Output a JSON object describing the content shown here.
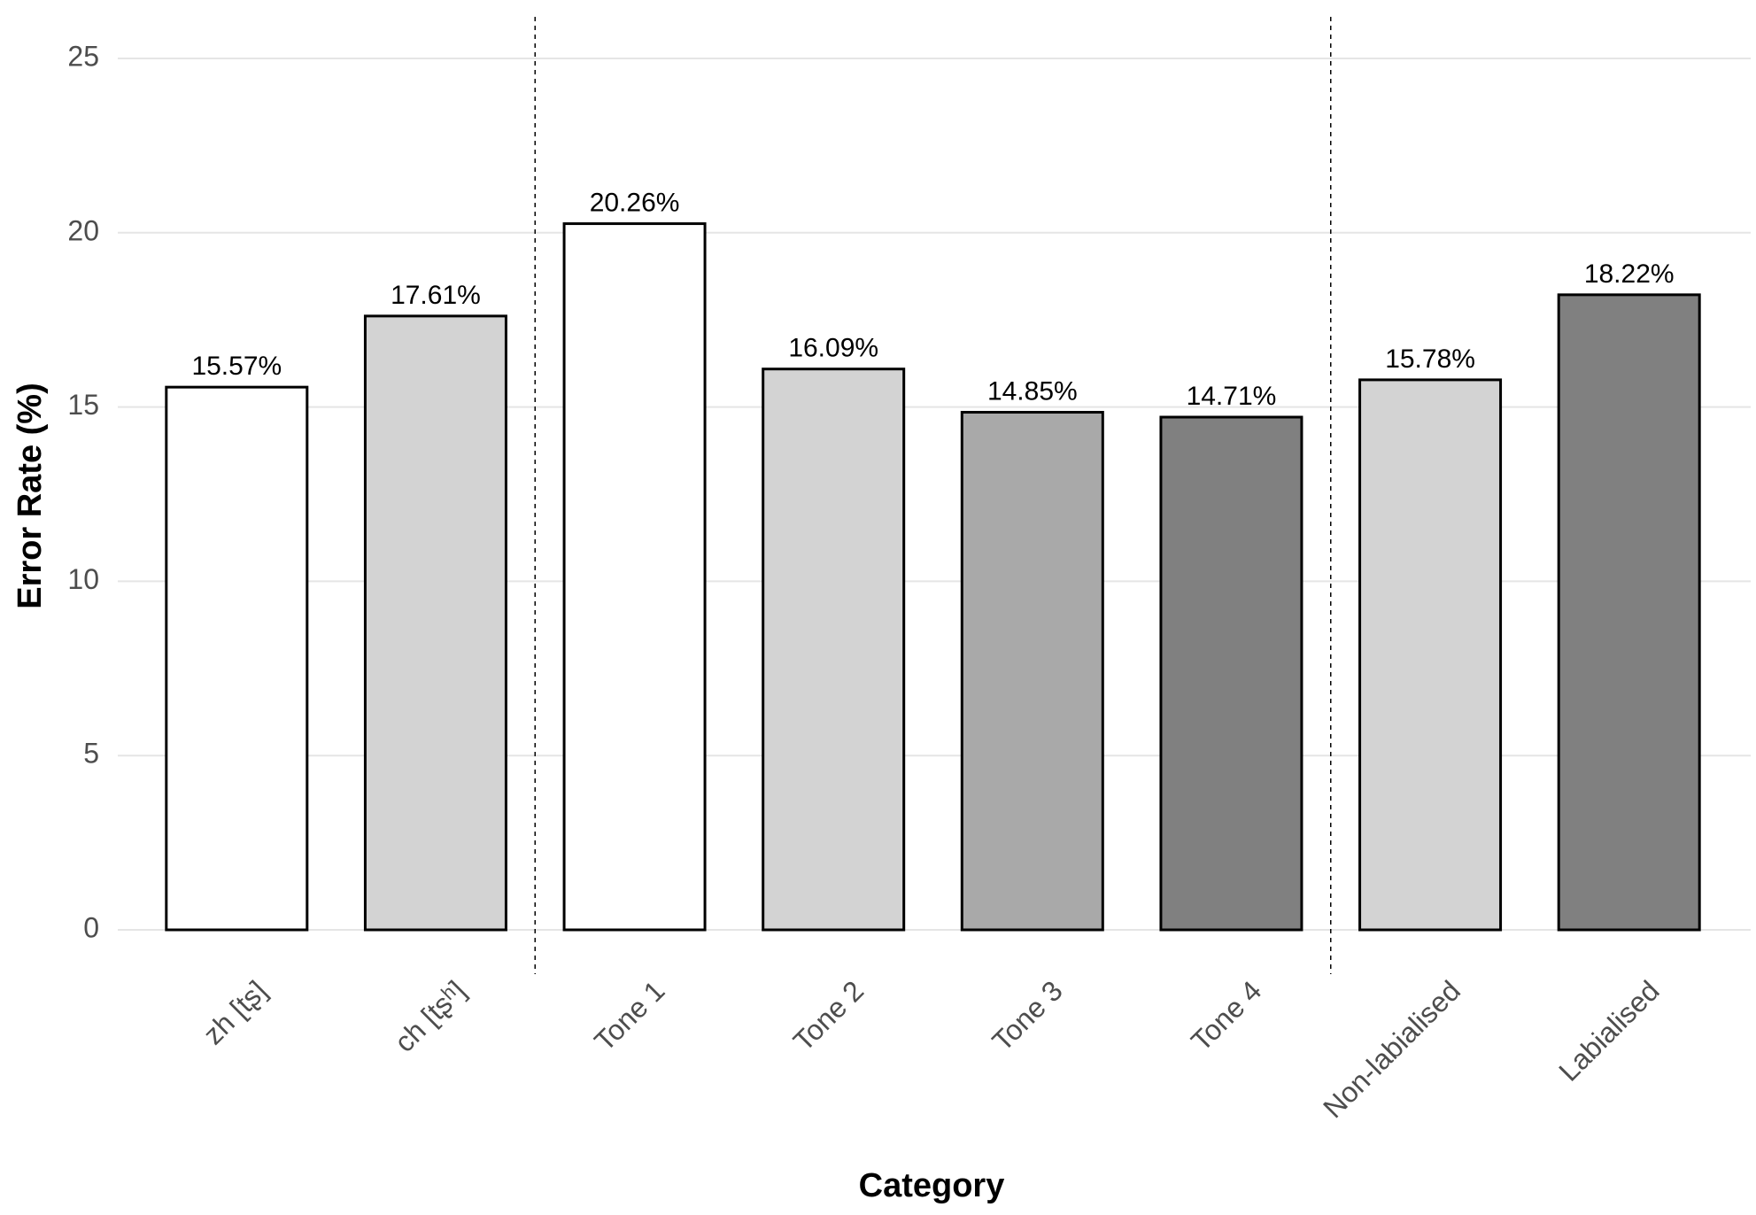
{
  "chart_data": {
    "type": "bar",
    "x_label": "Category",
    "y_label": "Error Rate (%)",
    "categories": [
      "zh [tʂ]",
      "ch [tʂʰ]",
      "Tone 1",
      "Tone 2",
      "Tone 3",
      "Tone 4",
      "Non-labialised",
      "Labialised"
    ],
    "values": [
      15.57,
      17.61,
      20.26,
      16.09,
      14.85,
      14.71,
      15.78,
      18.22
    ],
    "value_labels": [
      "15.57%",
      "17.61%",
      "20.26%",
      "16.09%",
      "14.85%",
      "14.71%",
      "15.78%",
      "18.22%"
    ],
    "colors": [
      "#ffffff",
      "#d3d3d3",
      "#ffffff",
      "#d3d3d3",
      "#a9a9a9",
      "#808080",
      "#d3d3d3",
      "#808080"
    ],
    "ylim": [
      0,
      25
    ],
    "yticks": [
      0,
      5,
      10,
      15,
      20,
      25
    ],
    "grid": true
  }
}
